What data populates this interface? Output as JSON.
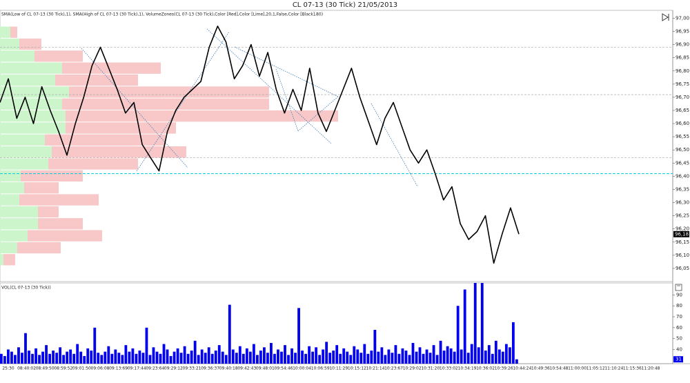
{
  "chart_data": {
    "type": "price-volume",
    "title": "CL 07-13 (30 Tick)  21/05/2013",
    "indicator_label": "SMA(Low of CL 07-13 (30 Tick),1), SMA(High of CL 07-13 (30 Tick),1), VolumeZones(CL 07-13 (30 Tick),Color [Red],Color [Lime],20,1,False,Color [Black],80)",
    "ylim": [
      96.0,
      97.03
    ],
    "yticks": [
      {
        "value": 97.0,
        "label": "97,00"
      },
      {
        "value": 96.95,
        "label": "96,95"
      },
      {
        "value": 96.9,
        "label": "96,90"
      },
      {
        "value": 96.85,
        "label": "96,85"
      },
      {
        "value": 96.8,
        "label": "96,80"
      },
      {
        "value": 96.75,
        "label": "96,75"
      },
      {
        "value": 96.7,
        "label": "96,70"
      },
      {
        "value": 96.65,
        "label": "96,65"
      },
      {
        "value": 96.6,
        "label": "96,60"
      },
      {
        "value": 96.55,
        "label": "96,55"
      },
      {
        "value": 96.5,
        "label": "96,50"
      },
      {
        "value": 96.45,
        "label": "96,45"
      },
      {
        "value": 96.4,
        "label": "96,40"
      },
      {
        "value": 96.35,
        "label": "96,35"
      },
      {
        "value": 96.3,
        "label": "96,30"
      },
      {
        "value": 96.25,
        "label": "96,25"
      },
      {
        "value": 96.2,
        "label": "96,20"
      },
      {
        "value": 96.15,
        "label": "96,15"
      },
      {
        "value": 96.1,
        "label": "96,10"
      },
      {
        "value": 96.05,
        "label": "96,05"
      }
    ],
    "price": {
      "color": "#000000",
      "values": [
        96.68,
        96.77,
        96.62,
        96.7,
        96.6,
        96.74,
        96.65,
        96.57,
        96.48,
        96.6,
        96.7,
        96.82,
        96.89,
        96.81,
        96.73,
        96.64,
        96.68,
        96.52,
        96.47,
        96.42,
        96.57,
        96.65,
        96.7,
        96.73,
        96.76,
        96.89,
        96.97,
        96.91,
        96.77,
        96.82,
        96.9,
        96.78,
        96.87,
        96.73,
        96.64,
        96.73,
        96.65,
        96.81,
        96.64,
        96.57,
        96.65,
        96.73,
        96.81,
        96.7,
        96.61,
        96.52,
        96.62,
        96.68,
        96.59,
        96.5,
        96.45,
        96.5,
        96.41,
        96.31,
        96.36,
        96.22,
        96.16,
        96.19,
        96.25,
        96.07,
        96.18,
        96.28,
        96.18
      ],
      "last_value_label": "96,18"
    },
    "reference_lines": [
      96.89,
      96.71,
      96.47
    ],
    "reference_color": "#aaaaaa",
    "cyan_line": 96.41,
    "cyan_color": "#00c8d8",
    "volume_zones": {
      "buy_color": "#ccf5cc",
      "sell_color": "#f8c8c8",
      "buy": [
        15,
        28,
        50,
        90,
        80,
        100,
        90,
        95,
        95,
        65,
        75,
        70,
        30,
        35,
        28,
        55,
        55,
        40,
        25,
        5
      ],
      "sell": [
        10,
        32,
        70,
        143,
        120,
        290,
        300,
        395,
        160,
        175,
        195,
        130,
        90,
        50,
        115,
        30,
        65,
        108,
        63,
        17
      ]
    },
    "volume": {
      "label": "VOL(CL 07-13 (30 Tick))",
      "color": "#0000ee",
      "ylim": [
        27,
        101
      ],
      "yticks": [
        40,
        50,
        60,
        70,
        80,
        90
      ],
      "values": [
        36,
        34,
        40,
        38,
        35,
        42,
        37,
        55,
        39,
        36,
        41,
        35,
        38,
        44,
        36,
        39,
        37,
        42,
        35,
        38,
        40,
        36,
        45,
        38,
        34,
        41,
        39,
        60,
        37,
        35,
        38,
        43,
        36,
        40,
        37,
        35,
        44,
        38,
        41,
        36,
        39,
        37,
        60,
        35,
        42,
        38,
        36,
        45,
        40,
        34,
        38,
        41,
        37,
        43,
        36,
        39,
        48,
        35,
        40,
        37,
        42,
        36,
        39,
        44,
        38,
        35,
        81,
        40,
        37,
        43,
        36,
        41,
        38,
        45,
        35,
        39,
        42,
        37,
        46,
        36,
        40,
        38,
        44,
        35,
        41,
        37,
        78,
        39,
        36,
        43,
        38,
        42,
        35,
        40,
        47,
        37,
        39,
        44,
        36,
        41,
        38,
        35,
        43,
        40,
        37,
        45,
        36,
        39,
        58,
        38,
        42,
        35,
        40,
        37,
        44,
        36,
        41,
        39,
        35,
        46,
        38,
        42,
        36,
        40,
        37,
        44,
        35,
        48,
        39,
        43,
        41,
        38,
        80,
        40,
        95,
        37,
        45,
        101,
        42,
        101,
        39,
        44,
        36,
        48,
        40,
        38,
        45,
        42,
        65,
        31
      ],
      "last_value_label": "31"
    },
    "time_labels": [
      "25:30",
      "08:40:02",
      "08:49:50",
      "08:59:52",
      "09:01:50",
      "09:06:08",
      "09:13:69",
      "09:17:44",
      "09:23:64",
      "09:29:12",
      "09:33:21",
      "09:36:37",
      "09:40:18",
      "09:42:43",
      "09:48:01",
      "09:54:46",
      "10:00:04",
      "10:06:59",
      "10:11:29",
      "10:15:12",
      "10:21:14",
      "10:23:67",
      "10:29:02",
      "10:31:20",
      "10:33:02",
      "10:34:19",
      "10:36:02",
      "10:39:26",
      "10:44:24",
      "10:49:36",
      "10:54:48",
      "11:00:00",
      "11:05:12",
      "11:10:24",
      "11:15:36",
      "11:20:48"
    ]
  }
}
